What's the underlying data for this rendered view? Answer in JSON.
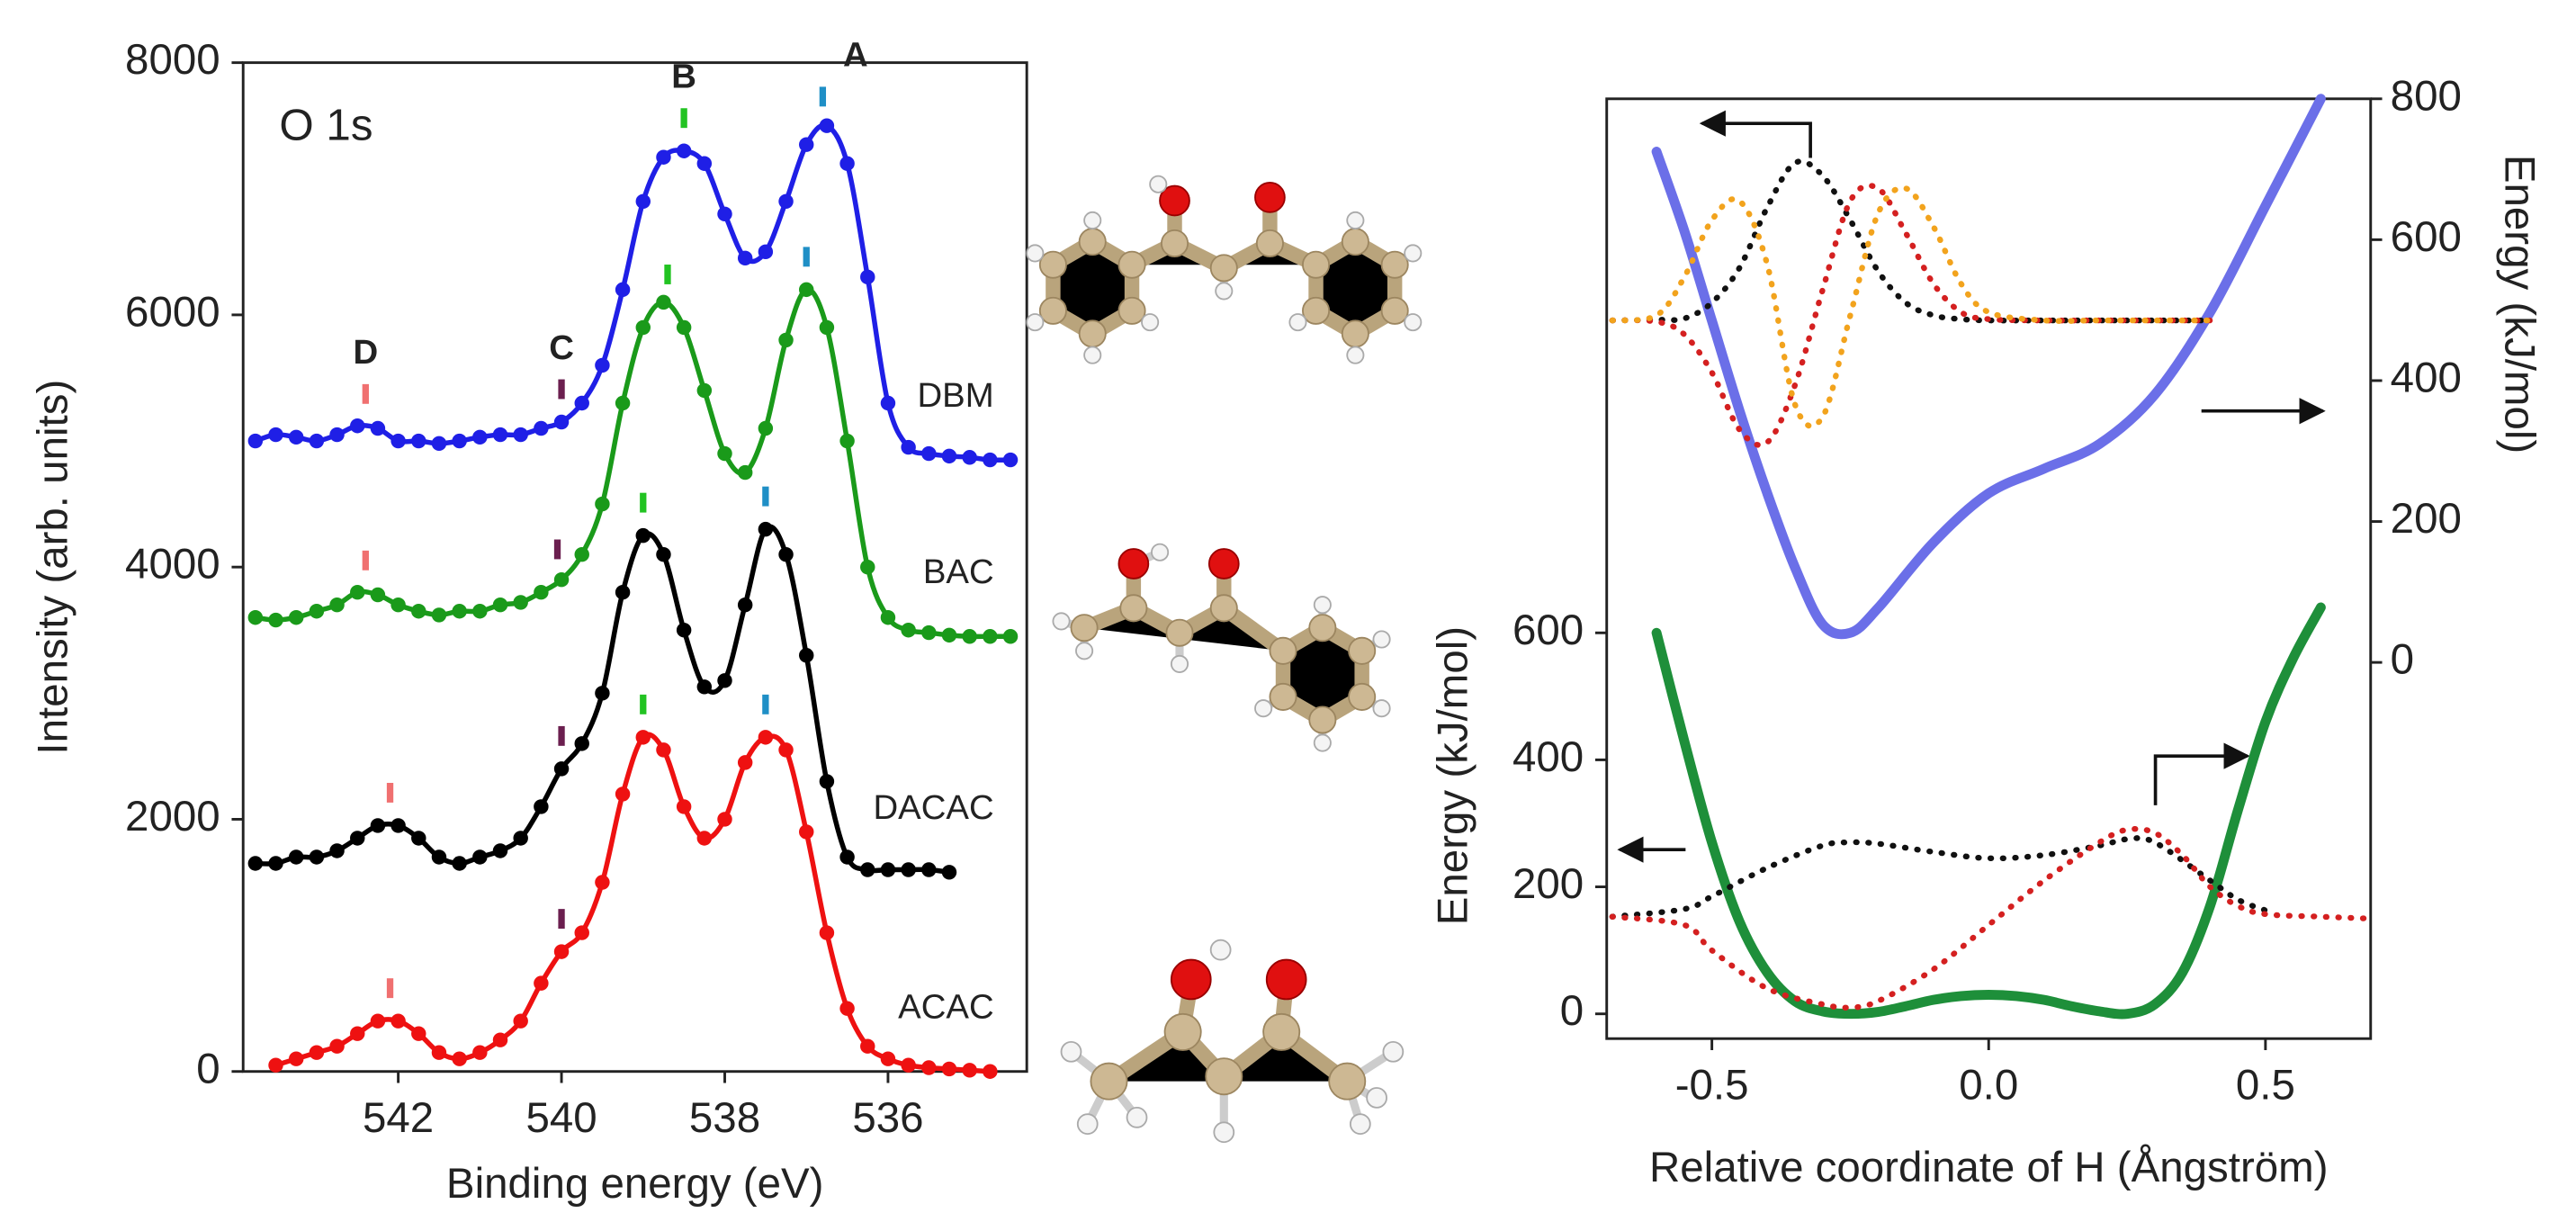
{
  "chart_data": [
    {
      "type": "line",
      "annotation": "O 1s",
      "xlabel": "Binding energy (eV)",
      "ylabel": "Intensity (arb. units)",
      "xlim": [
        543.9,
        534.3
      ],
      "ylim": [
        0,
        8000
      ],
      "xticks": [
        542,
        540,
        538,
        536
      ],
      "yticks": [
        0,
        2000,
        4000,
        6000,
        8000
      ],
      "markers": true,
      "peaks": [
        {
          "label": "A",
          "color": "#1f8fc6"
        },
        {
          "label": "B",
          "color": "#22c322"
        },
        {
          "label": "C",
          "color": "#6b1f4f"
        },
        {
          "label": "D",
          "color": "#f07070"
        }
      ],
      "series": [
        {
          "name": "DBM",
          "color": "#1f1fe6",
          "peak_x": [
            536.8,
            538.5,
            540.0,
            542.4
          ],
          "x": [
            543.75,
            543.5,
            543.25,
            543,
            542.75,
            542.5,
            542.25,
            542,
            541.75,
            541.5,
            541.25,
            541,
            540.75,
            540.5,
            540.25,
            540,
            539.75,
            539.5,
            539.25,
            539,
            538.75,
            538.5,
            538.25,
            538,
            537.75,
            537.5,
            537.25,
            537,
            536.75,
            536.5,
            536.25,
            536,
            535.75,
            535.5,
            535.25,
            535,
            534.75,
            534.5
          ],
          "values": [
            5000,
            5050,
            5030,
            5000,
            5050,
            5120,
            5100,
            5000,
            5000,
            4980,
            5000,
            5030,
            5050,
            5050,
            5100,
            5150,
            5300,
            5600,
            6200,
            6900,
            7250,
            7300,
            7200,
            6800,
            6450,
            6500,
            6900,
            7350,
            7500,
            7200,
            6300,
            5300,
            4950,
            4900,
            4880,
            4870,
            4850,
            4850
          ]
        },
        {
          "name": "BAC",
          "color": "#1a9a1a",
          "peak_x": [
            537.0,
            538.7,
            540.05,
            542.4
          ],
          "x": [
            543.75,
            543.5,
            543.25,
            543,
            542.75,
            542.5,
            542.25,
            542,
            541.75,
            541.5,
            541.25,
            541,
            540.75,
            540.5,
            540.25,
            540,
            539.75,
            539.5,
            539.25,
            539,
            538.75,
            538.5,
            538.25,
            538,
            537.75,
            537.5,
            537.25,
            537,
            536.75,
            536.5,
            536.25,
            536,
            535.75,
            535.5,
            535.25,
            535,
            534.75,
            534.5
          ],
          "values": [
            3600,
            3580,
            3600,
            3650,
            3700,
            3800,
            3780,
            3700,
            3650,
            3620,
            3650,
            3650,
            3700,
            3720,
            3800,
            3900,
            4100,
            4500,
            5300,
            5900,
            6100,
            5900,
            5400,
            4900,
            4750,
            5100,
            5800,
            6200,
            5900,
            5000,
            4000,
            3600,
            3500,
            3480,
            3460,
            3450,
            3450,
            3450
          ]
        },
        {
          "name": "DACAC",
          "color": "#000000",
          "peak_x": [
            537.5,
            539.0,
            540.0,
            542.1
          ],
          "x": [
            543.75,
            543.5,
            543.25,
            543,
            542.75,
            542.5,
            542.25,
            542,
            541.75,
            541.5,
            541.25,
            541,
            540.75,
            540.5,
            540.25,
            540,
            539.75,
            539.5,
            539.25,
            539,
            538.75,
            538.5,
            538.25,
            538,
            537.75,
            537.5,
            537.25,
            537,
            536.75,
            536.5,
            536.25,
            536,
            535.75,
            535.5,
            535.25
          ],
          "values": [
            1650,
            1650,
            1700,
            1700,
            1750,
            1850,
            1950,
            1950,
            1850,
            1700,
            1650,
            1700,
            1750,
            1850,
            2100,
            2400,
            2600,
            3000,
            3800,
            4250,
            4100,
            3500,
            3050,
            3100,
            3700,
            4300,
            4100,
            3300,
            2300,
            1700,
            1600,
            1600,
            1600,
            1600,
            1580
          ]
        },
        {
          "name": "ACAC",
          "color": "#ee1111",
          "peak_x": [
            537.5,
            539.0,
            540.0,
            542.1
          ],
          "x": [
            543.5,
            543.25,
            543,
            542.75,
            542.5,
            542.25,
            542,
            541.75,
            541.5,
            541.25,
            541,
            540.75,
            540.5,
            540.25,
            540,
            539.75,
            539.5,
            539.25,
            539,
            538.75,
            538.5,
            538.25,
            538,
            537.75,
            537.5,
            537.25,
            537,
            536.75,
            536.5,
            536.25,
            536,
            535.75,
            535.5,
            535.25,
            535,
            534.75
          ],
          "values": [
            50,
            100,
            150,
            200,
            300,
            400,
            400,
            300,
            150,
            100,
            150,
            250,
            400,
            700,
            950,
            1100,
            1500,
            2200,
            2650,
            2550,
            2100,
            1850,
            2000,
            2450,
            2650,
            2550,
            1900,
            1100,
            500,
            200,
            100,
            50,
            30,
            20,
            10,
            0
          ]
        }
      ]
    },
    {
      "type": "line",
      "xlabel": "Relative coordinate of H (Ångström)",
      "ylabel": "Energy (kJ/mol)",
      "y2label": "Energy (kJ/mol)",
      "xlim": [
        -0.69,
        0.69
      ],
      "ylim": [
        -39,
        1441
      ],
      "y2lim": [
        -534,
        800
      ],
      "xticks": [
        -0.5,
        {
          "value": 0,
          "label": "0.0"
        },
        0.5
      ],
      "yticks": [
        0,
        200,
        400,
        600
      ],
      "y2ticks": [
        0,
        200,
        400,
        600,
        800
      ],
      "series": [
        {
          "color": "#6b6fe8",
          "style": "solid",
          "axis": "y2",
          "x": [
            -0.6,
            -0.55,
            -0.5,
            -0.45,
            -0.4,
            -0.35,
            -0.3,
            -0.25,
            -0.2,
            -0.1,
            0,
            0.1,
            0.2,
            0.3,
            0.4,
            0.5,
            0.6
          ],
          "values": [
            725,
            613,
            485,
            357,
            240,
            135,
            54,
            42,
            77,
            170,
            240,
            275,
            310,
            380,
            497,
            648,
            800
          ]
        },
        {
          "color": "#111111",
          "style": "dotted",
          "x": [
            -0.68,
            -0.6,
            -0.55,
            -0.5,
            -0.45,
            -0.4,
            -0.35,
            -0.3,
            -0.25,
            -0.2,
            -0.15,
            -0.1,
            -0.05,
            0,
            0.1,
            0.2,
            0.3,
            0.4
          ],
          "values": [
            1092,
            1093,
            1095,
            1120,
            1175,
            1270,
            1340,
            1320,
            1250,
            1170,
            1120,
            1100,
            1094,
            1092,
            1092,
            1092,
            1092,
            1092
          ]
        },
        {
          "color": "#d42020",
          "style": "dotted",
          "x": [
            -0.68,
            -0.6,
            -0.55,
            -0.5,
            -0.45,
            -0.4,
            -0.35,
            -0.3,
            -0.25,
            -0.2,
            -0.15,
            -0.1,
            -0.05,
            0,
            0.1,
            0.2,
            0.3,
            0.4
          ],
          "values": [
            1092,
            1090,
            1070,
            1010,
            920,
            900,
            990,
            1140,
            1280,
            1300,
            1230,
            1150,
            1105,
            1094,
            1092,
            1092,
            1092,
            1092
          ]
        },
        {
          "color": "#f2a31d",
          "style": "dotted",
          "x": [
            -0.68,
            -0.6,
            -0.55,
            -0.5,
            -0.45,
            -0.4,
            -0.35,
            -0.3,
            -0.25,
            -0.2,
            -0.15,
            -0.1,
            -0.05,
            0,
            0.1,
            0.2,
            0.3,
            0.4
          ],
          "values": [
            1092,
            1100,
            1160,
            1250,
            1280,
            1180,
            960,
            940,
            1100,
            1260,
            1300,
            1240,
            1150,
            1105,
            1092,
            1092,
            1092,
            1092
          ]
        },
        {
          "color": "#1e8f3a",
          "style": "solid",
          "x": [
            -0.6,
            -0.55,
            -0.5,
            -0.45,
            -0.4,
            -0.35,
            -0.3,
            -0.25,
            -0.2,
            -0.15,
            -0.1,
            -0.05,
            0,
            0.05,
            0.1,
            0.15,
            0.2,
            0.25,
            0.3,
            0.35,
            0.4,
            0.45,
            0.5,
            0.55,
            0.6
          ],
          "values": [
            600,
            430,
            270,
            145,
            65,
            20,
            4,
            0,
            3,
            12,
            22,
            28,
            30,
            28,
            22,
            12,
            4,
            0,
            15,
            65,
            170,
            320,
            460,
            560,
            640
          ]
        },
        {
          "color": "#111111",
          "style": "dotted",
          "x": [
            -0.68,
            -0.55,
            -0.5,
            -0.4,
            -0.3,
            -0.25,
            -0.2,
            -0.1,
            0,
            0.1,
            0.2,
            0.25,
            0.3,
            0.4,
            0.45,
            0.5
          ],
          "values": [
            153,
            165,
            185,
            230,
            265,
            270,
            268,
            255,
            245,
            250,
            265,
            275,
            270,
            210,
            180,
            163
          ]
        },
        {
          "color": "#d42020",
          "style": "dotted",
          "x": [
            -0.68,
            -0.55,
            -0.5,
            -0.4,
            -0.3,
            -0.25,
            -0.2,
            -0.1,
            0,
            0.1,
            0.2,
            0.25,
            0.3,
            0.35,
            0.4,
            0.45,
            0.5,
            0.6,
            0.69
          ],
          "values": [
            153,
            140,
            100,
            40,
            15,
            10,
            20,
            70,
            140,
            210,
            270,
            290,
            285,
            250,
            200,
            170,
            157,
            153,
            150
          ]
        }
      ]
    }
  ]
}
